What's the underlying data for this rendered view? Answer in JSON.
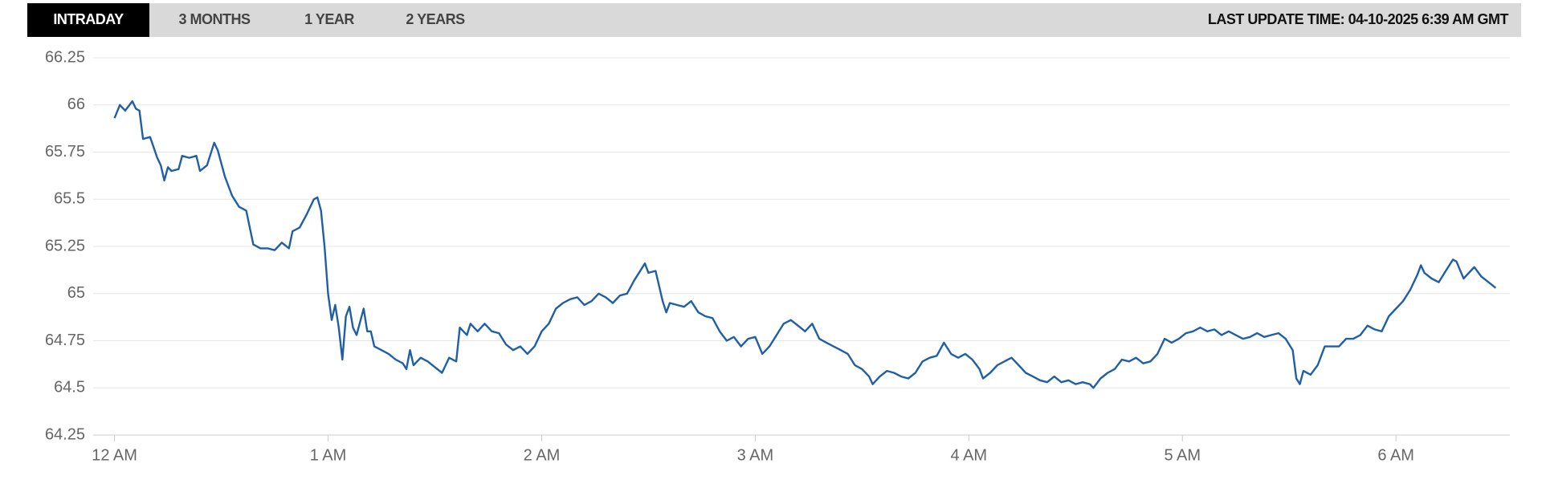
{
  "tabs": [
    "INTRADAY",
    "3 MONTHS",
    "1 YEAR",
    "2 YEARS"
  ],
  "active_tab": 0,
  "last_update": "LAST UPDATE TIME: 04-10-2025 6:39 AM GMT",
  "chart_data": {
    "type": "line",
    "color": "#1f5fa6",
    "grid": true,
    "xlim": [
      -6,
      392
    ],
    "xticks": [
      {
        "value": 0,
        "label": "12 AM"
      },
      {
        "value": 60,
        "label": "1 AM"
      },
      {
        "value": 120,
        "label": "2 AM"
      },
      {
        "value": 180,
        "label": "3 AM"
      },
      {
        "value": 240,
        "label": "4 AM"
      },
      {
        "value": 300,
        "label": "5 AM"
      },
      {
        "value": 360,
        "label": "6 AM"
      }
    ],
    "ylim": [
      64.25,
      66.25
    ],
    "yticks": [
      66.25,
      66,
      65.75,
      65.5,
      65.25,
      65,
      64.75,
      64.5,
      64.25
    ],
    "x": [
      0,
      1.5,
      3,
      5,
      6,
      7,
      8,
      10,
      12,
      13,
      14,
      15,
      16,
      18,
      19,
      21,
      23,
      24,
      26,
      28,
      29,
      31,
      33,
      35,
      37,
      39,
      41,
      43,
      45,
      47,
      49,
      50,
      52,
      54,
      56,
      57,
      58,
      59,
      60,
      61,
      62,
      63,
      64,
      65,
      66,
      67,
      68,
      70,
      71,
      72,
      73,
      75,
      77,
      79,
      81,
      82,
      83,
      84,
      86,
      88,
      90,
      92,
      94,
      96,
      97,
      99,
      100,
      102,
      104,
      106,
      108,
      110,
      112,
      114,
      116,
      118,
      120,
      122,
      124,
      126,
      128,
      130,
      132,
      134,
      136,
      138,
      140,
      142,
      144,
      146,
      148,
      149,
      150,
      152,
      154,
      155,
      156,
      158,
      160,
      162,
      164,
      166,
      168,
      170,
      172,
      174,
      176,
      178,
      180,
      182,
      184,
      186,
      188,
      190,
      192,
      194,
      196,
      198,
      200,
      202,
      204,
      206,
      208,
      210,
      212,
      213,
      215,
      217,
      219,
      221,
      223,
      225,
      227,
      229,
      231,
      233,
      235,
      237,
      239,
      241,
      243,
      244,
      246,
      248,
      250,
      252,
      254,
      256,
      258,
      260,
      262,
      264,
      266,
      268,
      270,
      272,
      274,
      275,
      277,
      279,
      281,
      283,
      285,
      287,
      289,
      291,
      293,
      295,
      297,
      299,
      301,
      303,
      305,
      307,
      309,
      311,
      313,
      315,
      317,
      319,
      321,
      323,
      325,
      327,
      329,
      331,
      332,
      333,
      334,
      336,
      338,
      340,
      342,
      344,
      346,
      348,
      350,
      352,
      354,
      356,
      358,
      360,
      362,
      364,
      366,
      367,
      368,
      370,
      372,
      374,
      376,
      377,
      379,
      381,
      382,
      384,
      386,
      388
    ],
    "values": [
      65.93,
      66.0,
      65.97,
      66.02,
      65.98,
      65.97,
      65.82,
      65.83,
      65.72,
      65.68,
      65.6,
      65.67,
      65.65,
      65.66,
      65.73,
      65.72,
      65.73,
      65.65,
      65.68,
      65.8,
      65.76,
      65.62,
      65.52,
      65.46,
      65.44,
      65.26,
      65.24,
      65.24,
      65.23,
      65.27,
      65.24,
      65.33,
      65.35,
      65.42,
      65.5,
      65.51,
      65.44,
      65.25,
      65.0,
      64.86,
      64.94,
      64.82,
      64.65,
      64.88,
      64.93,
      64.82,
      64.78,
      64.92,
      64.8,
      64.8,
      64.72,
      64.7,
      64.68,
      64.65,
      64.63,
      64.6,
      64.7,
      64.62,
      64.66,
      64.64,
      64.61,
      64.58,
      64.66,
      64.64,
      64.82,
      64.78,
      64.84,
      64.8,
      64.84,
      64.8,
      64.79,
      64.73,
      64.7,
      64.72,
      64.68,
      64.72,
      64.8,
      64.84,
      64.92,
      64.95,
      64.97,
      64.98,
      64.94,
      64.96,
      65.0,
      64.98,
      64.95,
      64.99,
      65.0,
      65.07,
      65.13,
      65.16,
      65.11,
      65.12,
      64.96,
      64.9,
      64.95,
      64.94,
      64.93,
      64.96,
      64.9,
      64.88,
      64.87,
      64.8,
      64.75,
      64.77,
      64.72,
      64.76,
      64.77,
      64.68,
      64.72,
      64.78,
      64.84,
      64.86,
      64.83,
      64.8,
      64.84,
      64.76,
      64.74,
      64.72,
      64.7,
      64.68,
      64.62,
      64.6,
      64.56,
      64.52,
      64.56,
      64.59,
      64.58,
      64.56,
      64.55,
      64.58,
      64.64,
      64.66,
      64.67,
      64.74,
      64.68,
      64.66,
      64.68,
      64.65,
      64.6,
      64.55,
      64.58,
      64.62,
      64.64,
      64.66,
      64.62,
      64.58,
      64.56,
      64.54,
      64.53,
      64.56,
      64.53,
      64.54,
      64.52,
      64.53,
      64.52,
      64.5,
      64.55,
      64.58,
      64.6,
      64.65,
      64.64,
      64.66,
      64.63,
      64.64,
      64.68,
      64.76,
      64.74,
      64.76,
      64.79,
      64.8,
      64.82,
      64.8,
      64.81,
      64.78,
      64.8,
      64.78,
      64.76,
      64.77,
      64.79,
      64.77,
      64.78,
      64.79,
      64.76,
      64.7,
      64.55,
      64.52,
      64.59,
      64.57,
      64.62,
      64.72,
      64.72,
      64.72,
      64.76,
      64.76,
      64.78,
      64.83,
      64.81,
      64.8,
      64.88,
      64.92,
      64.96,
      65.02,
      65.1,
      65.15,
      65.11,
      65.08,
      65.06,
      65.12,
      65.18,
      65.17,
      65.08,
      65.12,
      65.14,
      65.09,
      65.06,
      65.03
    ]
  }
}
